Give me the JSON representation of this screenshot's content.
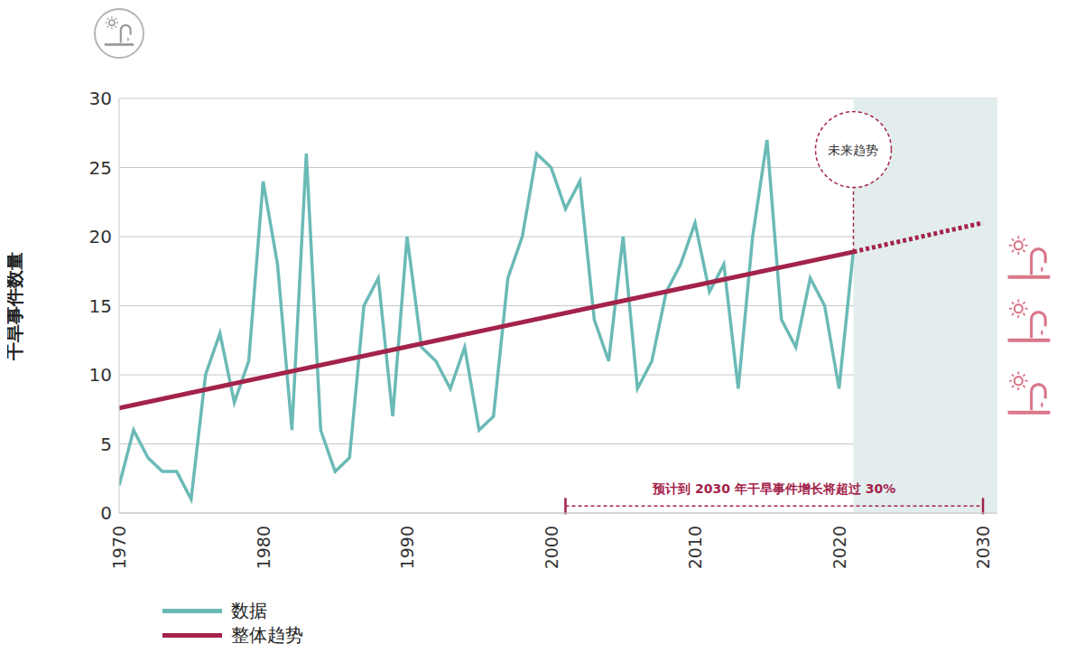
{
  "chart_data": {
    "type": "line",
    "y_label": "干旱事件数量",
    "xlim": [
      1970,
      2031
    ],
    "xticks": [
      1970,
      1980,
      1990,
      2000,
      2010,
      2020,
      2030
    ],
    "ylim": [
      0,
      30
    ],
    "yticks": [
      0,
      5,
      10,
      15,
      20,
      25,
      30
    ],
    "grid": true,
    "legend": "bottom",
    "series": [
      {
        "name": "数据",
        "color": "#6bbab6",
        "x": [
          1970,
          1971,
          1972,
          1973,
          1974,
          1975,
          1976,
          1977,
          1978,
          1979,
          1980,
          1981,
          1982,
          1983,
          1984,
          1985,
          1986,
          1987,
          1988,
          1989,
          1990,
          1991,
          1992,
          1993,
          1994,
          1995,
          1996,
          1997,
          1998,
          1999,
          2000,
          2001,
          2002,
          2003,
          2004,
          2005,
          2006,
          2007,
          2008,
          2009,
          2010,
          2011,
          2012,
          2013,
          2014,
          2015,
          2016,
          2017,
          2018,
          2019,
          2020,
          2021
        ],
        "values": [
          2,
          6,
          4,
          3,
          3,
          1,
          10,
          13,
          8,
          11,
          24,
          18,
          6,
          26,
          6,
          3,
          4,
          15,
          17,
          7,
          20,
          12,
          11,
          9,
          12,
          6,
          7,
          17,
          20,
          26,
          25,
          22,
          24,
          14,
          11,
          20,
          9,
          11,
          16,
          18,
          21,
          16,
          18,
          9,
          20,
          27,
          14,
          12,
          17,
          15,
          9,
          19
        ]
      },
      {
        "name": "整体趋势",
        "color": "#a3234a",
        "x": [
          1970,
          2021,
          2030
        ],
        "values": [
          7.6,
          18.9,
          21
        ],
        "line_style": [
          "solid",
          "dotted"
        ]
      }
    ],
    "shaded_region": {
      "x": [
        2021,
        2031
      ],
      "label": "未来趋势",
      "label_y": 26.3
    },
    "annotation": {
      "text": "预计到 2030 年干旱事件增长将超过 30%",
      "x": [
        2001,
        2030
      ],
      "y": 0.5
    }
  }
}
